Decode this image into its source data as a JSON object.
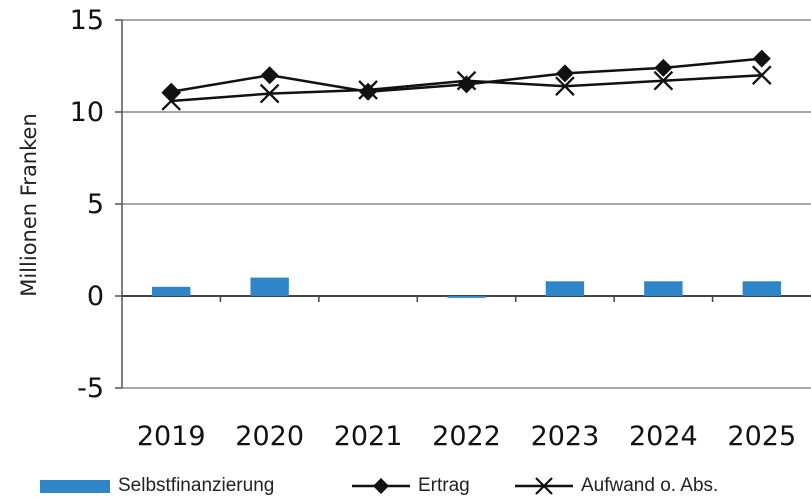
{
  "chart_data": {
    "type": "bar+line",
    "categories": [
      "2019",
      "2020",
      "2021",
      "2022",
      "2023",
      "2024",
      "2025"
    ],
    "ylabel": "Millionen Franken",
    "ylim": [
      -5,
      15
    ],
    "yticks": [
      15,
      10,
      5,
      0,
      -5
    ],
    "grid": "horizontal",
    "legend_position": "bottom",
    "series": [
      {
        "name": "Selbstfinanzierung",
        "kind": "bar",
        "color": "#2e86c8",
        "values": [
          0.5,
          1.0,
          0.0,
          -0.1,
          0.8,
          0.8,
          0.8
        ]
      },
      {
        "name": "Ertrag",
        "kind": "line",
        "marker": "diamond",
        "color": "#111111",
        "values": [
          11.1,
          12.0,
          11.1,
          11.5,
          12.1,
          12.4,
          12.9
        ]
      },
      {
        "name": "Aufwand o. Abs.",
        "kind": "line",
        "marker": "x",
        "color": "#111111",
        "values": [
          10.6,
          11.0,
          11.2,
          11.7,
          11.4,
          11.7,
          12.0
        ]
      }
    ]
  }
}
